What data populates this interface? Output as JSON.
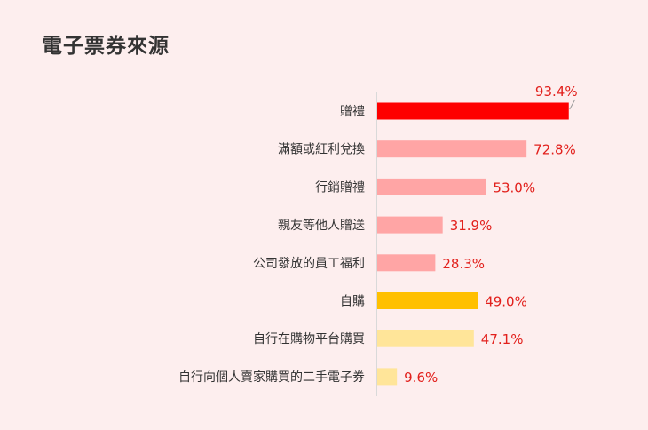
{
  "page": {
    "title": "電子票券來源"
  },
  "chart_data": {
    "type": "bar",
    "orientation": "horizontal",
    "title": "電子票券來源",
    "xlabel": "",
    "ylabel": "",
    "xlim": [
      0,
      100
    ],
    "grid": false,
    "unit": "%",
    "categories": [
      "贈禮",
      "滿額或紅利兌換",
      "行銷贈禮",
      "親友等他人贈送",
      "公司發放的員工福利",
      "自購",
      "自行在購物平台購買",
      "自行向個人賣家購買的二手電子券"
    ],
    "values": [
      93.4,
      72.8,
      53.0,
      31.9,
      28.3,
      49.0,
      47.1,
      9.6
    ],
    "value_labels": [
      "93.4%",
      "72.8%",
      "53.0%",
      "31.9%",
      "28.3%",
      "49.0%",
      "47.1%",
      "9.6%"
    ],
    "bar_colors": [
      "#fe0000",
      "#ffa5a5",
      "#ffa5a5",
      "#ffa5a5",
      "#ffa5a5",
      "#ffc000",
      "#ffe599",
      "#ffe599"
    ],
    "value_label_color": "#e2201c",
    "callout_on": "贈禮"
  }
}
